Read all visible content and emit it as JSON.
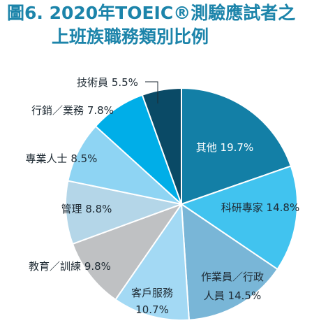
{
  "title_line1": "圖6. 2020年TOEIC®測驗應試者之",
  "title_line2": "上班族職務類別比例",
  "chart_data": {
    "type": "pie",
    "title": "圖6. 2020年TOEIC®測驗應試者之上班族職務類別比例",
    "slices": [
      {
        "label": "其他",
        "value": 19.7,
        "display": "19.7%",
        "color": "#137fa6",
        "text_color": "#ffffff"
      },
      {
        "label": "科研專家",
        "value": 14.8,
        "display": "14.8%",
        "color": "#41c3ef",
        "text_color": "#1e2a33"
      },
      {
        "label": "作業員／行政人員",
        "value": 14.5,
        "display": "14.5%",
        "color": "#79b6d7",
        "text_color": "#1e2a33"
      },
      {
        "label": "客戶服務",
        "value": 10.7,
        "display": "10.7%",
        "color": "#a3d9f4",
        "text_color": "#1e2a33"
      },
      {
        "label": "教育／訓練",
        "value": 9.8,
        "display": "9.8%",
        "color": "#bfc1c3",
        "text_color": "#1e2a33"
      },
      {
        "label": "管理",
        "value": 8.8,
        "display": "8.8%",
        "color": "#b4d6e8",
        "text_color": "#1e2a33"
      },
      {
        "label": "專業人士",
        "value": 8.5,
        "display": "8.5%",
        "color": "#8ed4f3",
        "text_color": "#1e2a33"
      },
      {
        "label": "行銷／業務",
        "value": 7.8,
        "display": "7.8%",
        "color": "#00aee8",
        "text_color": "#1e2a33"
      },
      {
        "label": "技術員",
        "value": 5.5,
        "display": "5.5%",
        "color": "#0a4a66",
        "text_color": "#1e2a33"
      }
    ]
  }
}
